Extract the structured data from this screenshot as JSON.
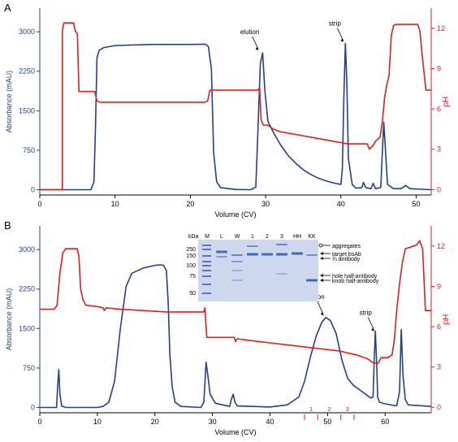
{
  "colors": {
    "absorbance": "#23408e",
    "ph": "#e01e1e",
    "gel_bg": "#cdd8ee",
    "band": "#3a5fb0",
    "axis": "#000000"
  },
  "chart_data": [
    {
      "panel": "A",
      "type": "line",
      "xlabel": "Volume (CV)",
      "ylabel_left": "Absorbance (mAU)",
      "ylabel_right": "pH",
      "xlim": [
        0,
        52
      ],
      "ylim_left": [
        -100,
        3450
      ],
      "ylim_right": [
        -0.4,
        13.5
      ],
      "xticks": [
        0,
        10,
        20,
        30,
        40,
        50
      ],
      "yticks_left": [
        0,
        750,
        1500,
        2250,
        3000
      ],
      "yticks_right": [
        0,
        3,
        6,
        9,
        12
      ],
      "annotations": [
        {
          "text": "elution",
          "x": 29.2,
          "y": 2620
        },
        {
          "text": "strip",
          "x": 40.5,
          "y": 2780
        }
      ],
      "series": [
        {
          "axis": "left",
          "points": [
            [
              0,
              0
            ],
            [
              6.8,
              0
            ],
            [
              7.2,
              150
            ],
            [
              7.4,
              1200
            ],
            [
              7.6,
              2500
            ],
            [
              7.9,
              2650
            ],
            [
              8.5,
              2700
            ],
            [
              10,
              2740
            ],
            [
              15,
              2760
            ],
            [
              20,
              2760
            ],
            [
              22,
              2765
            ],
            [
              22.4,
              2720
            ],
            [
              22.8,
              2300
            ],
            [
              23.1,
              700
            ],
            [
              23.5,
              150
            ],
            [
              24,
              40
            ],
            [
              26,
              5
            ],
            [
              28,
              0
            ],
            [
              28.7,
              50
            ],
            [
              29,
              1200
            ],
            [
              29.3,
              2400
            ],
            [
              29.6,
              2600
            ],
            [
              29.9,
              1900
            ],
            [
              30.3,
              1300
            ],
            [
              31,
              1100
            ],
            [
              32,
              850
            ],
            [
              33,
              650
            ],
            [
              34,
              500
            ],
            [
              35,
              380
            ],
            [
              36,
              290
            ],
            [
              37,
              220
            ],
            [
              38,
              170
            ],
            [
              39,
              130
            ],
            [
              40,
              100
            ],
            [
              40.2,
              400
            ],
            [
              40.4,
              1800
            ],
            [
              40.6,
              2780
            ],
            [
              40.8,
              2000
            ],
            [
              41,
              600
            ],
            [
              41.5,
              100
            ],
            [
              42,
              30
            ],
            [
              42.8,
              40
            ],
            [
              43,
              140
            ],
            [
              43.3,
              40
            ],
            [
              44,
              20
            ],
            [
              44.3,
              120
            ],
            [
              44.6,
              20
            ],
            [
              45.3,
              40
            ],
            [
              45.5,
              700
            ],
            [
              45.7,
              1280
            ],
            [
              45.9,
              800
            ],
            [
              46.2,
              100
            ],
            [
              47,
              20
            ],
            [
              48,
              20
            ],
            [
              48.6,
              80
            ],
            [
              49.2,
              20
            ],
            [
              52,
              0
            ]
          ]
        },
        {
          "axis": "right",
          "points": [
            [
              0,
              0
            ],
            [
              3,
              0
            ],
            [
              3,
              11.8
            ],
            [
              3.2,
              12.4
            ],
            [
              4.5,
              12.4
            ],
            [
              4.7,
              11.8
            ],
            [
              5,
              11.6
            ],
            [
              5.2,
              7.3
            ],
            [
              7,
              7.3
            ],
            [
              7.3,
              7.3
            ],
            [
              7.6,
              6.6
            ],
            [
              8,
              6.5
            ],
            [
              22,
              6.5
            ],
            [
              22.3,
              6.6
            ],
            [
              22.6,
              7.4
            ],
            [
              29,
              7.4
            ],
            [
              29.2,
              7.6
            ],
            [
              29.4,
              5.2
            ],
            [
              29.7,
              4.8
            ],
            [
              30.3,
              4.8
            ],
            [
              31,
              4.5
            ],
            [
              32,
              4.3
            ],
            [
              34,
              4.1
            ],
            [
              36,
              3.9
            ],
            [
              38,
              3.7
            ],
            [
              40,
              3.5
            ],
            [
              41,
              3.4
            ],
            [
              43.5,
              3.4
            ],
            [
              43.8,
              3.0
            ],
            [
              44.3,
              3.3
            ],
            [
              44.6,
              3.6
            ],
            [
              45.2,
              3.9
            ],
            [
              45.5,
              5
            ],
            [
              45.8,
              6.8
            ],
            [
              46.1,
              7.8
            ],
            [
              46.4,
              8.5
            ],
            [
              46.7,
              11.5
            ],
            [
              47,
              12.2
            ],
            [
              47.3,
              12.3
            ],
            [
              50.2,
              12.3
            ],
            [
              50.5,
              11.8
            ],
            [
              50.8,
              10
            ],
            [
              51.3,
              7.4
            ],
            [
              52,
              7.4
            ]
          ]
        }
      ]
    },
    {
      "panel": "B",
      "type": "line",
      "xlabel": "Volume (CV)",
      "ylabel_left": "Absorbance (mAU)",
      "ylabel_right": "pH",
      "xlim": [
        0,
        68
      ],
      "ylim_left": [
        -100,
        3450
      ],
      "ylim_right": [
        -0.4,
        13.5
      ],
      "xticks": [
        0,
        10,
        20,
        30,
        40,
        50,
        60
      ],
      "yticks_left": [
        0,
        750,
        1500,
        2250,
        3000
      ],
      "yticks_right": [
        0,
        3,
        6,
        9,
        12
      ],
      "annotations": [
        {
          "text": "elution",
          "x": 49.5,
          "y": 1720
        },
        {
          "text": "strip",
          "x": 58.3,
          "y": 1420
        }
      ],
      "fractions": [
        {
          "label": "1",
          "start": 46,
          "end": 48.3
        },
        {
          "label": "2",
          "start": 48.3,
          "end": 52.3
        },
        {
          "label": "3",
          "start": 52.3,
          "end": 54.6
        }
      ],
      "series": [
        {
          "axis": "left",
          "points": [
            [
              0,
              0
            ],
            [
              2.9,
              0
            ],
            [
              3.1,
              400
            ],
            [
              3.3,
              720
            ],
            [
              3.5,
              250
            ],
            [
              3.8,
              30
            ],
            [
              4.5,
              0
            ],
            [
              10,
              0
            ],
            [
              11,
              20
            ],
            [
              12,
              100
            ],
            [
              13,
              500
            ],
            [
              14,
              1500
            ],
            [
              15,
              2300
            ],
            [
              16,
              2550
            ],
            [
              18,
              2650
            ],
            [
              20,
              2700
            ],
            [
              21,
              2710
            ],
            [
              21.5,
              2700
            ],
            [
              22,
              2600
            ],
            [
              22.3,
              2000
            ],
            [
              22.6,
              1000
            ],
            [
              23,
              400
            ],
            [
              23.5,
              100
            ],
            [
              24.5,
              20
            ],
            [
              28,
              0
            ],
            [
              28.5,
              100
            ],
            [
              28.9,
              860
            ],
            [
              29.2,
              600
            ],
            [
              29.6,
              250
            ],
            [
              30.5,
              80
            ],
            [
              33,
              20
            ],
            [
              33.3,
              160
            ],
            [
              33.6,
              250
            ],
            [
              33.9,
              100
            ],
            [
              34.3,
              30
            ],
            [
              40,
              10
            ],
            [
              43,
              50
            ],
            [
              45,
              200
            ],
            [
              46,
              500
            ],
            [
              47,
              950
            ],
            [
              48,
              1350
            ],
            [
              49,
              1620
            ],
            [
              49.7,
              1710
            ],
            [
              50.5,
              1650
            ],
            [
              51.5,
              1400
            ],
            [
              52.5,
              900
            ],
            [
              53.5,
              550
            ],
            [
              54.5,
              420
            ],
            [
              55.5,
              340
            ],
            [
              56.5,
              260
            ],
            [
              57.5,
              180
            ],
            [
              57.9,
              200
            ],
            [
              58.1,
              900
            ],
            [
              58.3,
              1450
            ],
            [
              58.5,
              900
            ],
            [
              58.7,
              200
            ],
            [
              59,
              100
            ],
            [
              60,
              70
            ],
            [
              62,
              30
            ],
            [
              62.5,
              300
            ],
            [
              62.8,
              1480
            ],
            [
              63.1,
              600
            ],
            [
              63.5,
              150
            ],
            [
              64,
              50
            ],
            [
              68,
              20
            ]
          ]
        },
        {
          "axis": "right",
          "points": [
            [
              0,
              7.3
            ],
            [
              2.5,
              7.3
            ],
            [
              3,
              7.6
            ],
            [
              3.5,
              10
            ],
            [
              4,
              11.5
            ],
            [
              4.5,
              11.8
            ],
            [
              6.5,
              11.8
            ],
            [
              6.8,
              11.2
            ],
            [
              7.1,
              8.8
            ],
            [
              7.5,
              8.0
            ],
            [
              8,
              7.6
            ],
            [
              10,
              7.5
            ],
            [
              11,
              7.4
            ],
            [
              11.2,
              7.2
            ],
            [
              11.5,
              7.4
            ],
            [
              14,
              7.3
            ],
            [
              18,
              7.2
            ],
            [
              22,
              7.1
            ],
            [
              27,
              7.1
            ],
            [
              28.5,
              7.1
            ],
            [
              28.7,
              7.4
            ],
            [
              29,
              5.2
            ],
            [
              33.8,
              5.2
            ],
            [
              34,
              4.9
            ],
            [
              34.3,
              5.1
            ],
            [
              36,
              5.0
            ],
            [
              40,
              4.8
            ],
            [
              44,
              4.6
            ],
            [
              48,
              4.4
            ],
            [
              52,
              4.2
            ],
            [
              55,
              3.9
            ],
            [
              57,
              3.6
            ],
            [
              58,
              3.3
            ],
            [
              58.8,
              3.3
            ],
            [
              59.3,
              3.7
            ],
            [
              60.5,
              3.7
            ],
            [
              61.2,
              3.9
            ],
            [
              61.6,
              5
            ],
            [
              62,
              7.2
            ],
            [
              62.5,
              9.2
            ],
            [
              63,
              10.8
            ],
            [
              63.5,
              11.8
            ],
            [
              65,
              12.0
            ],
            [
              65.5,
              12.1
            ],
            [
              66,
              12.4
            ],
            [
              66.5,
              11.8
            ],
            [
              67,
              7.2
            ],
            [
              68,
              7.2
            ]
          ]
        }
      ]
    }
  ],
  "panel_labels": {
    "a": "A",
    "b": "B"
  },
  "gel": {
    "kda_label": "kDa",
    "markers": [
      "250",
      "150",
      "100",
      "75",
      "50"
    ],
    "lanes": [
      "M",
      "L",
      "W",
      "1",
      "2",
      "3",
      "HH",
      "KK"
    ],
    "annotations": [
      "aggregates",
      "target bsAb",
      "¾ antibody",
      "hole half-antibody",
      "knob half-antibody"
    ]
  }
}
